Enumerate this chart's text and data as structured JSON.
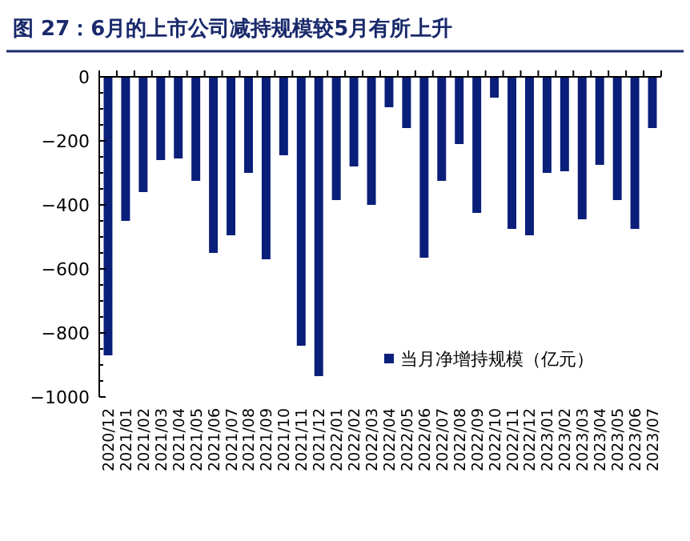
{
  "chart_data": {
    "type": "bar",
    "title": "图 27：6月的上市公司减持规模较5月有所上升",
    "categories": [
      "2020/12",
      "2021/01",
      "2021/02",
      "2021/03",
      "2021/04",
      "2021/05",
      "2021/06",
      "2021/07",
      "2021/08",
      "2021/09",
      "2021/10",
      "2021/11",
      "2021/12",
      "2022/01",
      "2022/02",
      "2022/03",
      "2022/04",
      "2022/05",
      "2022/06",
      "2022/07",
      "2022/08",
      "2022/09",
      "2022/10",
      "2022/11",
      "2022/12",
      "2023/01",
      "2023/02",
      "2023/03",
      "2023/04",
      "2023/05",
      "2023/06",
      "2023/07"
    ],
    "series": [
      {
        "name": "当月净增持规模（亿元）",
        "color": "#0a1f7a",
        "values": [
          -870,
          -450,
          -360,
          -260,
          -255,
          -325,
          -550,
          -495,
          -300,
          -570,
          -245,
          -840,
          -935,
          -385,
          -280,
          -400,
          -95,
          -160,
          -565,
          -325,
          -210,
          -425,
          -65,
          -475,
          -495,
          -300,
          -295,
          -445,
          -275,
          -385,
          -475,
          -160
        ]
      }
    ],
    "ylim": [
      -1000,
      0
    ],
    "yticks": [
      -1000,
      -800,
      -600,
      -400,
      -200,
      0
    ],
    "legend": "bottom right",
    "grid": false
  }
}
